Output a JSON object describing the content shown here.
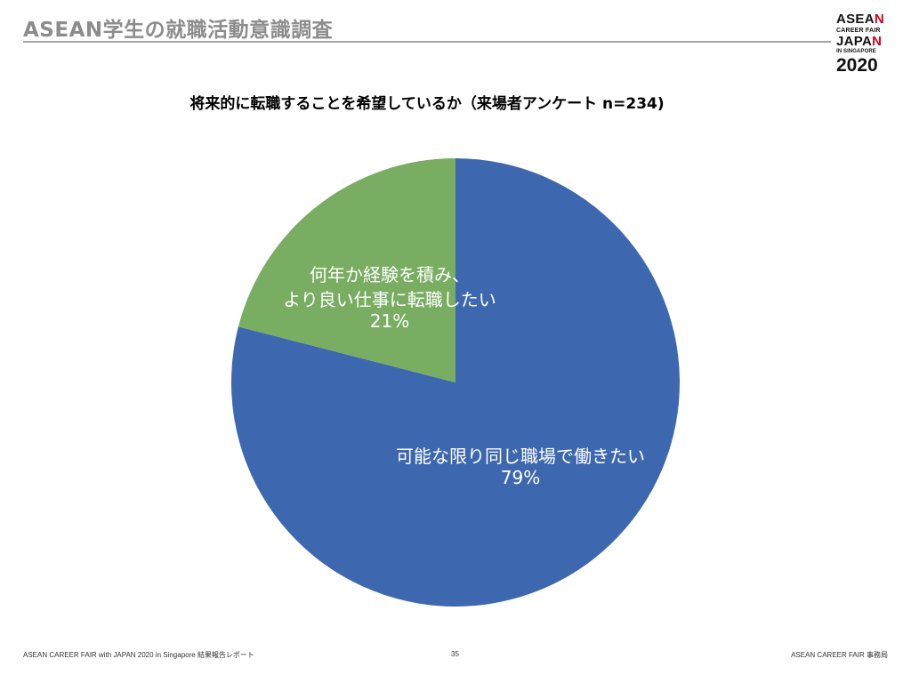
{
  "header": {
    "title": "ASEAN学生の就職活動意識調査"
  },
  "logo": {
    "line1_main": "ASEA",
    "line1_accent": "N",
    "line2": "CAREER FAIR",
    "line3_main": "JAPA",
    "line3_accent": "N",
    "line4": "IN SINGAPORE",
    "line5": "2020",
    "accent_color": "#d0021b"
  },
  "chart_data": {
    "type": "pie",
    "title": "将来的に転職することを希望しているか（来場者アンケート n=234)",
    "slices": [
      {
        "label_lines": [
          "可能な限り同じ職場で働きたい"
        ],
        "value": 79,
        "percent_label": "79%",
        "color": "#3d68b0"
      },
      {
        "label_lines": [
          "何年か経験を積み、",
          "より良い仕事に転職したい"
        ],
        "value": 21,
        "percent_label": "21%",
        "color": "#79ad62"
      }
    ],
    "start_angle_deg": 0,
    "direction": "clockwise",
    "label_color": "#ffffff"
  },
  "footer": {
    "left": "ASEAN CAREER FAIR with JAPAN 2020 in Singapore 結果報告レポート",
    "page": "35",
    "right": "ASEAN CAREER FAIR 事務局"
  }
}
